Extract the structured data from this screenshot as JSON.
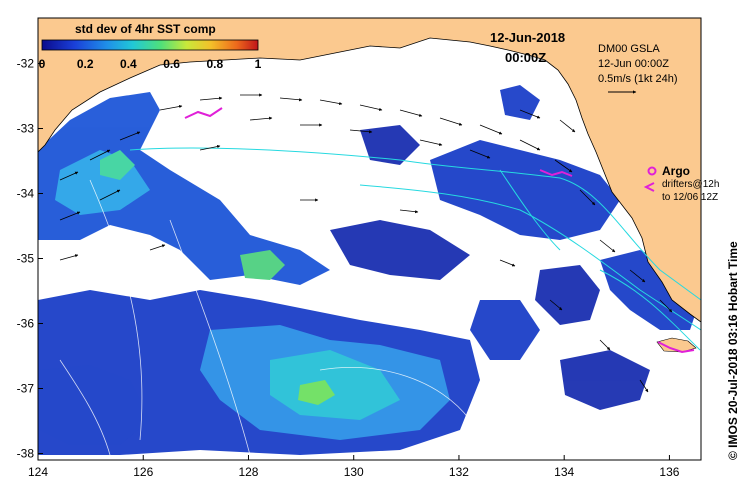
{
  "map": {
    "colorbar_title": "std dev of 4hr SST comp",
    "colorbar_ticks": [
      "0",
      "0.2",
      "0.4",
      "0.6",
      "0.8",
      "1"
    ],
    "colorbar_colors": [
      "#0b0b8c",
      "#1a3fd8",
      "#1f8fe8",
      "#21c8d6",
      "#4fe07a",
      "#c9e83a",
      "#f2c12a",
      "#ee6a1c",
      "#c0141a"
    ],
    "date": "12-Jun-2018",
    "time": "00:00Z",
    "gsla_title": "DM00 GSLA",
    "gsla_time": "12-Jun 00:00Z",
    "scale_label": "0.5m/s (1kt 24h)",
    "argo_label": "Argo",
    "drifters_label": "drifters@12h",
    "drifters_range": "to 12/06 12Z",
    "watermark": "© IMOS 20-Jul-2018 03:16 Hobart Time",
    "x_ticks": [
      "124",
      "126",
      "128",
      "130",
      "132",
      "134",
      "136"
    ],
    "y_ticks": [
      "-32",
      "-33",
      "-34",
      "-35",
      "-36",
      "-37",
      "-38"
    ],
    "lon_range": [
      124,
      136.6
    ],
    "lat_range": [
      -38.1,
      -31.3
    ],
    "colors": {
      "land": "#fbc98f",
      "ocean_no_data": "#ffffff",
      "contour": "#26d9e0",
      "drifter": "#e020d8",
      "argo": "#e020d8"
    }
  }
}
